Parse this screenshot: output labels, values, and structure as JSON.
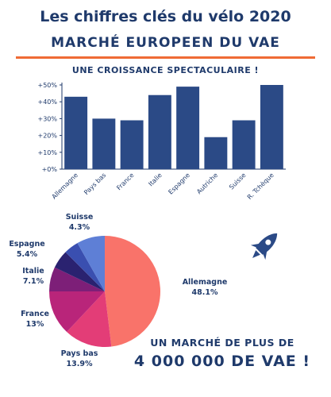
{
  "header": {
    "title": "Les chiffres clés du vélo 2020",
    "subtitle": "MARCHÉ EUROPEEN DU VAE"
  },
  "chart_data": [
    {
      "type": "bar",
      "title": "UNE CROISSANCE SPECTACULAIRE !",
      "categories": [
        "Allemagne",
        "Pays bas",
        "France",
        "Italie",
        "Espagne",
        "Autriche",
        "Suisse",
        "R. Tchèque"
      ],
      "values": [
        43,
        30,
        29,
        44,
        49,
        19,
        29,
        50
      ],
      "unit": "%",
      "ylim": [
        0,
        50
      ],
      "yticks": [
        "+0%",
        "+10%",
        "+20%",
        "+30%",
        "+40%",
        "+50%"
      ],
      "bar_color": "#2b4a86",
      "grid": false
    },
    {
      "type": "pie",
      "slices": [
        {
          "label": "Allemagne",
          "value_label": "48.1%",
          "value": 48.1,
          "color": "#f9736a"
        },
        {
          "label": "Pays bas",
          "value_label": "13.9%",
          "value": 13.9,
          "color": "#e33d77"
        },
        {
          "label": "France",
          "value_label": "13%",
          "value": 13,
          "color": "#b9257a"
        },
        {
          "label": "Italie",
          "value_label": "7.1%",
          "value": 7.1,
          "color": "#7d1f78"
        },
        {
          "label": "Espagne",
          "value_label": "5.4%",
          "value": 5.4,
          "color": "#2a2270"
        },
        {
          "label": "Suisse",
          "value_label": "4.3%",
          "value": 4.3,
          "color": "#3a4fb0"
        },
        {
          "label": "",
          "value_label": "",
          "value": 8.2,
          "color": "#5e7fd6"
        }
      ]
    }
  ],
  "footer": {
    "line1": "UN MARCHÉ DE PLUS DE",
    "line2": "4 000 000 DE VAE !"
  },
  "icon": {
    "name": "rocket-icon",
    "color": "#2b4a86"
  }
}
